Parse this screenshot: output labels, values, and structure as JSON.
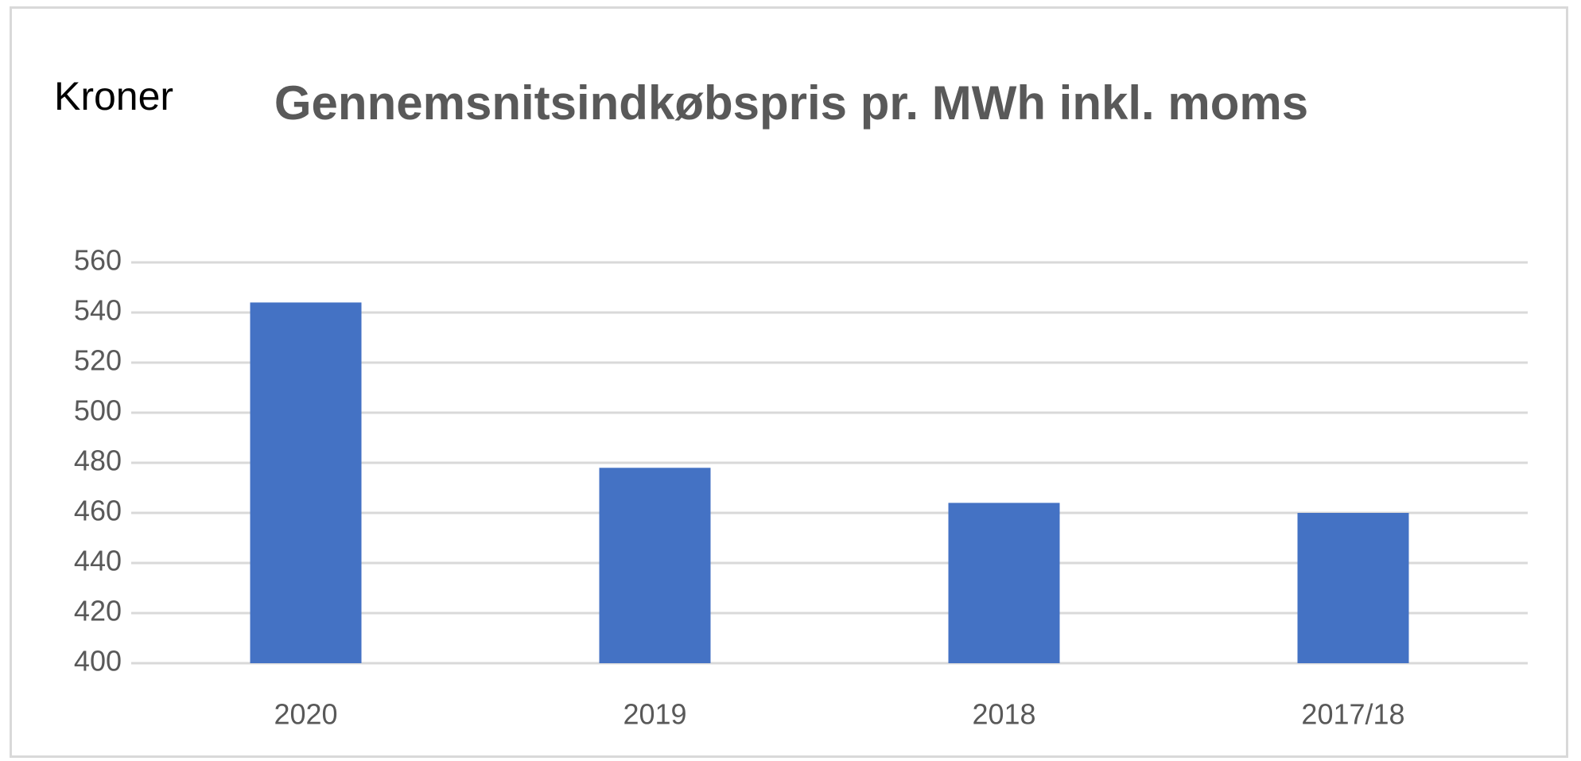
{
  "chart_data": {
    "type": "bar",
    "title": "Gennemsnitsindkøbspris pr. MWh inkl. moms",
    "y_label": "Kroner",
    "categories": [
      "2020",
      "2019",
      "2018",
      "2017/18"
    ],
    "values": [
      544,
      478,
      464,
      460
    ],
    "color": "#4472c4",
    "ylim": [
      400,
      560
    ],
    "yticks": [
      400,
      420,
      440,
      460,
      480,
      500,
      520,
      540,
      560
    ],
    "grid": true
  }
}
